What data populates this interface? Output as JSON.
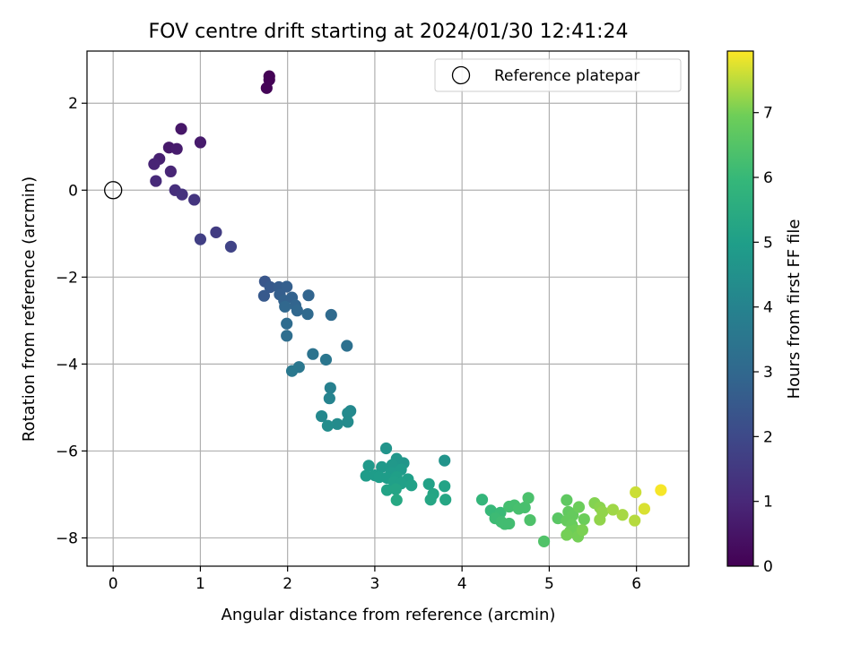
{
  "chart_data": {
    "type": "scatter",
    "title": "FOV centre drift starting at 2024/01/30 12:41:24",
    "xlabel": "Angular distance from reference (arcmin)",
    "ylabel": "Rotation from reference (arcmin)",
    "xlim": [
      -0.3,
      6.6
    ],
    "ylim": [
      -8.65,
      3.2
    ],
    "xticks": [
      0,
      1,
      2,
      3,
      4,
      5,
      6
    ],
    "xtick_labels": [
      "0",
      "1",
      "2",
      "3",
      "4",
      "5",
      "6"
    ],
    "yticks": [
      2,
      0,
      -2,
      -4,
      -6,
      -8
    ],
    "ytick_labels": [
      "2",
      "0",
      "−2",
      "−4",
      "−6",
      "−8"
    ],
    "grid": true,
    "legend": {
      "label": "Reference platepar",
      "placement": "top-right",
      "marker": "open-circle"
    },
    "reference_point": {
      "x": 0,
      "y": 0
    },
    "colorbar": {
      "label": "Hours from first FF file",
      "range": [
        0,
        7.95
      ],
      "ticks": [
        0,
        1,
        2,
        3,
        4,
        5,
        6,
        7
      ],
      "tick_labels": [
        "0",
        "1",
        "2",
        "3",
        "4",
        "5",
        "6",
        "7"
      ],
      "colormap": "viridis"
    },
    "points": [
      {
        "x": 1.79,
        "y": 2.62,
        "h": 0.02
      },
      {
        "x": 1.79,
        "y": 2.54,
        "h": 0.05
      },
      {
        "x": 1.76,
        "y": 2.35,
        "h": 0.08
      },
      {
        "x": 0.78,
        "y": 1.41,
        "h": 0.55
      },
      {
        "x": 1.0,
        "y": 1.1,
        "h": 0.65
      },
      {
        "x": 0.64,
        "y": 0.98,
        "h": 0.6
      },
      {
        "x": 0.73,
        "y": 0.95,
        "h": 0.7
      },
      {
        "x": 0.53,
        "y": 0.72,
        "h": 0.8
      },
      {
        "x": 0.47,
        "y": 0.6,
        "h": 0.9
      },
      {
        "x": 0.66,
        "y": 0.43,
        "h": 0.95
      },
      {
        "x": 0.49,
        "y": 0.21,
        "h": 1.05
      },
      {
        "x": 0.71,
        "y": 0.0,
        "h": 1.2
      },
      {
        "x": 0.79,
        "y": -0.1,
        "h": 1.3
      },
      {
        "x": 0.93,
        "y": -0.22,
        "h": 1.4
      },
      {
        "x": 1.18,
        "y": -0.97,
        "h": 1.6
      },
      {
        "x": 1.0,
        "y": -1.13,
        "h": 1.7
      },
      {
        "x": 1.35,
        "y": -1.3,
        "h": 1.8
      },
      {
        "x": 1.74,
        "y": -2.1,
        "h": 2.4
      },
      {
        "x": 1.8,
        "y": -2.23,
        "h": 2.5
      },
      {
        "x": 1.73,
        "y": -2.43,
        "h": 2.5
      },
      {
        "x": 1.9,
        "y": -2.23,
        "h": 2.6
      },
      {
        "x": 1.99,
        "y": -2.22,
        "h": 2.7
      },
      {
        "x": 1.91,
        "y": -2.4,
        "h": 2.7
      },
      {
        "x": 2.05,
        "y": -2.47,
        "h": 2.8
      },
      {
        "x": 1.96,
        "y": -2.54,
        "h": 2.8
      },
      {
        "x": 2.24,
        "y": -2.42,
        "h": 2.9
      },
      {
        "x": 2.09,
        "y": -2.65,
        "h": 2.9
      },
      {
        "x": 1.97,
        "y": -2.68,
        "h": 3.0
      },
      {
        "x": 2.11,
        "y": -2.77,
        "h": 3.0
      },
      {
        "x": 2.23,
        "y": -2.85,
        "h": 3.05
      },
      {
        "x": 2.5,
        "y": -2.87,
        "h": 3.1
      },
      {
        "x": 1.99,
        "y": -3.07,
        "h": 3.15
      },
      {
        "x": 1.99,
        "y": -3.35,
        "h": 3.2
      },
      {
        "x": 2.68,
        "y": -3.58,
        "h": 3.3
      },
      {
        "x": 2.29,
        "y": -3.77,
        "h": 3.4
      },
      {
        "x": 2.44,
        "y": -3.9,
        "h": 3.5
      },
      {
        "x": 2.13,
        "y": -4.07,
        "h": 3.55
      },
      {
        "x": 2.05,
        "y": -4.16,
        "h": 3.6
      },
      {
        "x": 2.49,
        "y": -4.55,
        "h": 3.9
      },
      {
        "x": 2.48,
        "y": -4.79,
        "h": 4.0
      },
      {
        "x": 2.72,
        "y": -5.08,
        "h": 4.2
      },
      {
        "x": 2.69,
        "y": -5.13,
        "h": 4.25
      },
      {
        "x": 2.39,
        "y": -5.2,
        "h": 4.2
      },
      {
        "x": 2.69,
        "y": -5.33,
        "h": 4.3
      },
      {
        "x": 2.57,
        "y": -5.38,
        "h": 4.3
      },
      {
        "x": 2.46,
        "y": -5.42,
        "h": 4.35
      },
      {
        "x": 3.13,
        "y": -5.94,
        "h": 4.6
      },
      {
        "x": 3.8,
        "y": -6.22,
        "h": 4.6
      },
      {
        "x": 3.25,
        "y": -6.18,
        "h": 4.7
      },
      {
        "x": 3.33,
        "y": -6.28,
        "h": 4.7
      },
      {
        "x": 3.2,
        "y": -6.32,
        "h": 4.75
      },
      {
        "x": 2.93,
        "y": -6.34,
        "h": 4.8
      },
      {
        "x": 3.08,
        "y": -6.37,
        "h": 4.8
      },
      {
        "x": 3.3,
        "y": -6.43,
        "h": 4.85
      },
      {
        "x": 3.19,
        "y": -6.5,
        "h": 4.85
      },
      {
        "x": 2.9,
        "y": -6.57,
        "h": 4.9
      },
      {
        "x": 3.0,
        "y": -6.56,
        "h": 4.9
      },
      {
        "x": 3.05,
        "y": -6.6,
        "h": 4.95
      },
      {
        "x": 3.14,
        "y": -6.62,
        "h": 4.95
      },
      {
        "x": 3.25,
        "y": -6.6,
        "h": 5.0
      },
      {
        "x": 3.38,
        "y": -6.65,
        "h": 5.0
      },
      {
        "x": 3.22,
        "y": -6.71,
        "h": 5.05
      },
      {
        "x": 3.3,
        "y": -6.75,
        "h": 5.05
      },
      {
        "x": 3.62,
        "y": -6.76,
        "h": 5.1
      },
      {
        "x": 3.42,
        "y": -6.79,
        "h": 5.1
      },
      {
        "x": 3.8,
        "y": -6.81,
        "h": 5.15
      },
      {
        "x": 3.14,
        "y": -6.9,
        "h": 5.15
      },
      {
        "x": 3.24,
        "y": -6.88,
        "h": 5.2
      },
      {
        "x": 3.67,
        "y": -6.99,
        "h": 5.25
      },
      {
        "x": 3.64,
        "y": -7.12,
        "h": 5.3
      },
      {
        "x": 3.81,
        "y": -7.12,
        "h": 5.3
      },
      {
        "x": 3.25,
        "y": -7.13,
        "h": 5.35
      },
      {
        "x": 4.23,
        "y": -7.12,
        "h": 5.9
      },
      {
        "x": 4.33,
        "y": -7.37,
        "h": 6.0
      },
      {
        "x": 4.44,
        "y": -7.42,
        "h": 6.05
      },
      {
        "x": 4.38,
        "y": -7.55,
        "h": 6.1
      },
      {
        "x": 4.45,
        "y": -7.63,
        "h": 6.15
      },
      {
        "x": 4.49,
        "y": -7.68,
        "h": 6.2
      },
      {
        "x": 4.54,
        "y": -7.67,
        "h": 6.2
      },
      {
        "x": 4.54,
        "y": -7.28,
        "h": 6.25
      },
      {
        "x": 4.6,
        "y": -7.25,
        "h": 6.25
      },
      {
        "x": 4.65,
        "y": -7.33,
        "h": 6.3
      },
      {
        "x": 4.72,
        "y": -7.3,
        "h": 6.3
      },
      {
        "x": 4.76,
        "y": -7.08,
        "h": 6.35
      },
      {
        "x": 4.78,
        "y": -7.59,
        "h": 6.4
      },
      {
        "x": 4.94,
        "y": -8.08,
        "h": 6.45
      },
      {
        "x": 5.1,
        "y": -7.55,
        "h": 6.6
      },
      {
        "x": 5.2,
        "y": -7.13,
        "h": 6.7
      },
      {
        "x": 5.22,
        "y": -7.4,
        "h": 6.75
      },
      {
        "x": 5.27,
        "y": -7.48,
        "h": 6.8
      },
      {
        "x": 5.2,
        "y": -7.6,
        "h": 6.8
      },
      {
        "x": 5.26,
        "y": -7.7,
        "h": 6.85
      },
      {
        "x": 5.34,
        "y": -7.29,
        "h": 6.9
      },
      {
        "x": 5.4,
        "y": -7.57,
        "h": 6.9
      },
      {
        "x": 5.3,
        "y": -7.82,
        "h": 6.95
      },
      {
        "x": 5.24,
        "y": -7.85,
        "h": 6.95
      },
      {
        "x": 5.2,
        "y": -7.93,
        "h": 7.0
      },
      {
        "x": 5.33,
        "y": -7.97,
        "h": 7.0
      },
      {
        "x": 5.38,
        "y": -7.82,
        "h": 7.05
      },
      {
        "x": 5.52,
        "y": -7.2,
        "h": 7.1
      },
      {
        "x": 5.58,
        "y": -7.3,
        "h": 7.15
      },
      {
        "x": 5.61,
        "y": -7.4,
        "h": 7.2
      },
      {
        "x": 5.58,
        "y": -7.58,
        "h": 7.2
      },
      {
        "x": 5.73,
        "y": -7.35,
        "h": 7.3
      },
      {
        "x": 5.84,
        "y": -7.47,
        "h": 7.35
      },
      {
        "x": 5.98,
        "y": -7.6,
        "h": 7.45
      },
      {
        "x": 5.99,
        "y": -6.95,
        "h": 7.6
      },
      {
        "x": 6.09,
        "y": -7.33,
        "h": 7.7
      },
      {
        "x": 6.28,
        "y": -6.9,
        "h": 7.9
      }
    ]
  }
}
